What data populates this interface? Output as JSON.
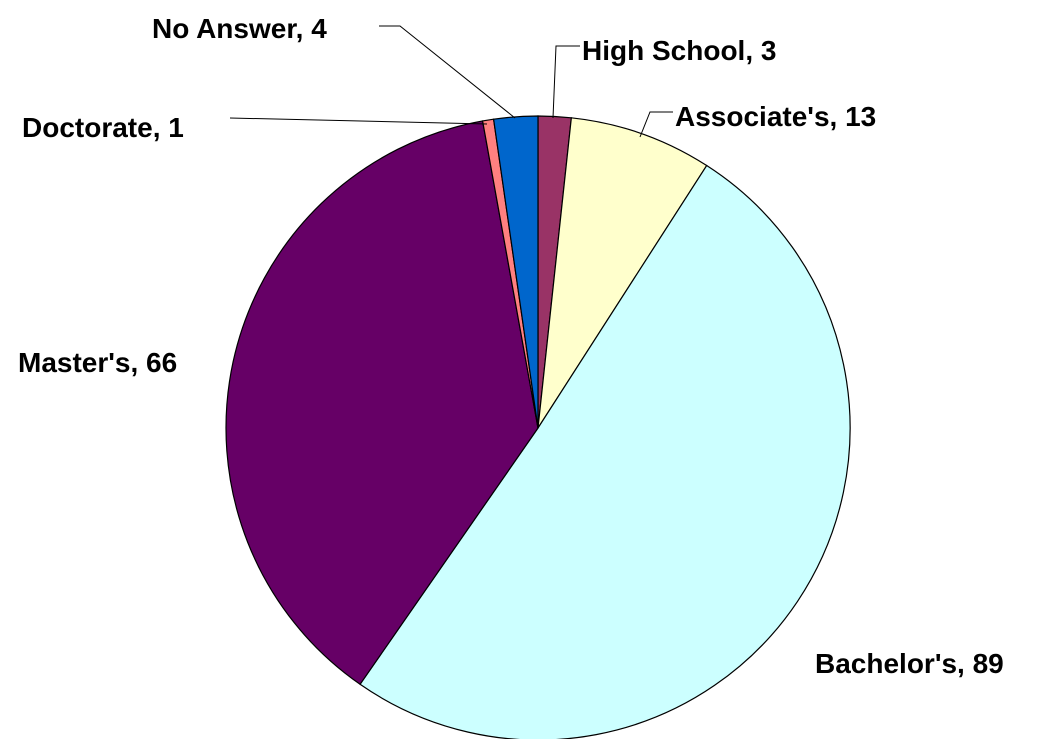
{
  "chart_data": {
    "type": "pie",
    "title": "",
    "slices": [
      {
        "label": "High School",
        "value": 3,
        "color": "#993366",
        "text": "High School, 3"
      },
      {
        "label": "Associate's",
        "value": 13,
        "color": "#FFFFCC",
        "text": "Associate's, 13"
      },
      {
        "label": "Bachelor's",
        "value": 89,
        "color": "#CCFFFF",
        "text": "Bachelor's, 89"
      },
      {
        "label": "Master's",
        "value": 66,
        "color": "#660066",
        "text": "Master's, 66"
      },
      {
        "label": "Doctorate",
        "value": 1,
        "color": "#FF8080",
        "text": "Doctorate, 1"
      },
      {
        "label": "No Answer",
        "value": 4,
        "color": "#0066CC",
        "text": "No Answer, 4"
      }
    ],
    "start_angle": "12 o'clock",
    "direction": "clockwise",
    "legend": "none"
  }
}
